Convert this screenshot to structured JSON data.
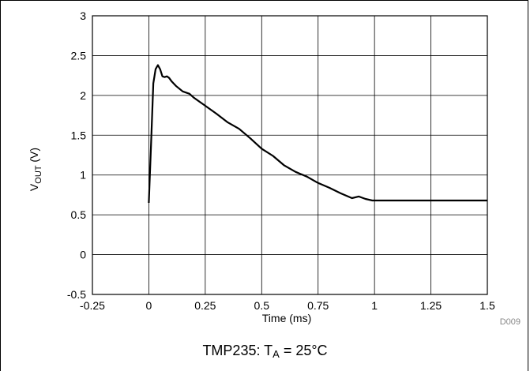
{
  "chart_data": {
    "type": "line",
    "xlabel": "Time (ms)",
    "ylabel_main": "V",
    "ylabel_sub": "OUT",
    "ylabel_unit": " (V)",
    "xlim": [
      -0.25,
      1.5
    ],
    "ylim": [
      -0.5,
      3
    ],
    "xticks": [
      "-0.25",
      "0",
      "0.25",
      "0.5",
      "0.75",
      "1",
      "1.25",
      "1.5"
    ],
    "yticks": [
      "-0.5",
      "0",
      "0.5",
      "1",
      "1.5",
      "2",
      "2.5",
      "3"
    ],
    "grid": true,
    "series": [
      {
        "color": "#000000",
        "x": [
          0,
          0.01,
          0.02,
          0.03,
          0.04,
          0.05,
          0.06,
          0.07,
          0.08,
          0.09,
          0.1,
          0.12,
          0.15,
          0.18,
          0.2,
          0.25,
          0.3,
          0.35,
          0.4,
          0.45,
          0.5,
          0.55,
          0.6,
          0.65,
          0.7,
          0.75,
          0.8,
          0.85,
          0.9,
          0.93,
          0.96,
          0.99,
          1.0,
          1.1,
          1.25,
          1.5
        ],
        "y": [
          0.65,
          1.4,
          2.15,
          2.33,
          2.38,
          2.33,
          2.24,
          2.23,
          2.24,
          2.22,
          2.18,
          2.12,
          2.05,
          2.02,
          1.97,
          1.87,
          1.77,
          1.66,
          1.58,
          1.46,
          1.33,
          1.24,
          1.12,
          1.04,
          0.98,
          0.9,
          0.84,
          0.77,
          0.71,
          0.73,
          0.7,
          0.68,
          0.68,
          0.68,
          0.68,
          0.68
        ]
      }
    ]
  },
  "footnote_code": "D009",
  "caption": {
    "prefix": "TMP235: T",
    "sub": "A",
    "suffix": " = 25°C"
  }
}
